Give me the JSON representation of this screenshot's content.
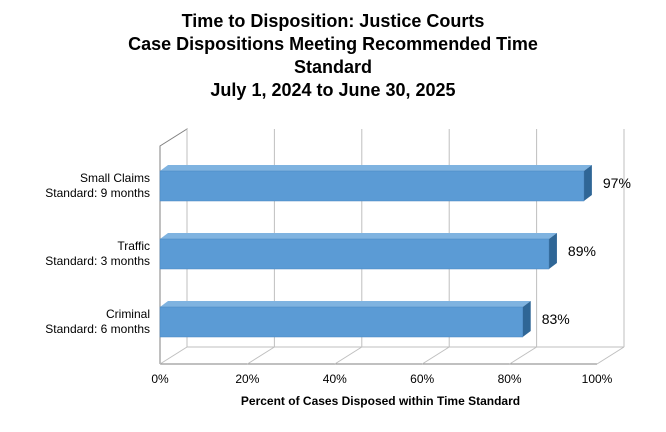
{
  "chart_data": {
    "type": "bar",
    "orientation": "horizontal",
    "title_lines": [
      "Time to Disposition: Justice Courts",
      "Case Dispositions Meeting Recommended Time",
      "Standard",
      "July 1, 2024 to June 30, 2025"
    ],
    "categories": [
      [
        "Small Claims",
        "Standard: 9 months"
      ],
      [
        "Traffic",
        "Standard: 3 months"
      ],
      [
        "Criminal",
        "Standard: 6 months"
      ]
    ],
    "values": [
      97,
      89,
      83
    ],
    "value_labels": [
      "97%",
      "89%",
      "83%"
    ],
    "xlim": [
      0,
      100
    ],
    "xticks": [
      0,
      20,
      40,
      60,
      80,
      100
    ],
    "xtick_labels": [
      "0%",
      "20%",
      "40%",
      "60%",
      "80%",
      "100%"
    ],
    "xlabel": "Percent of Cases Disposed within Time Standard",
    "ylabel": "",
    "grid": true,
    "three_d": true,
    "colors": {
      "bar_front": "#5b9bd5",
      "bar_top": "#7fb3e0",
      "bar_side": "#2f6696",
      "grid": "#bfbfbf",
      "wall": "#808080"
    }
  }
}
